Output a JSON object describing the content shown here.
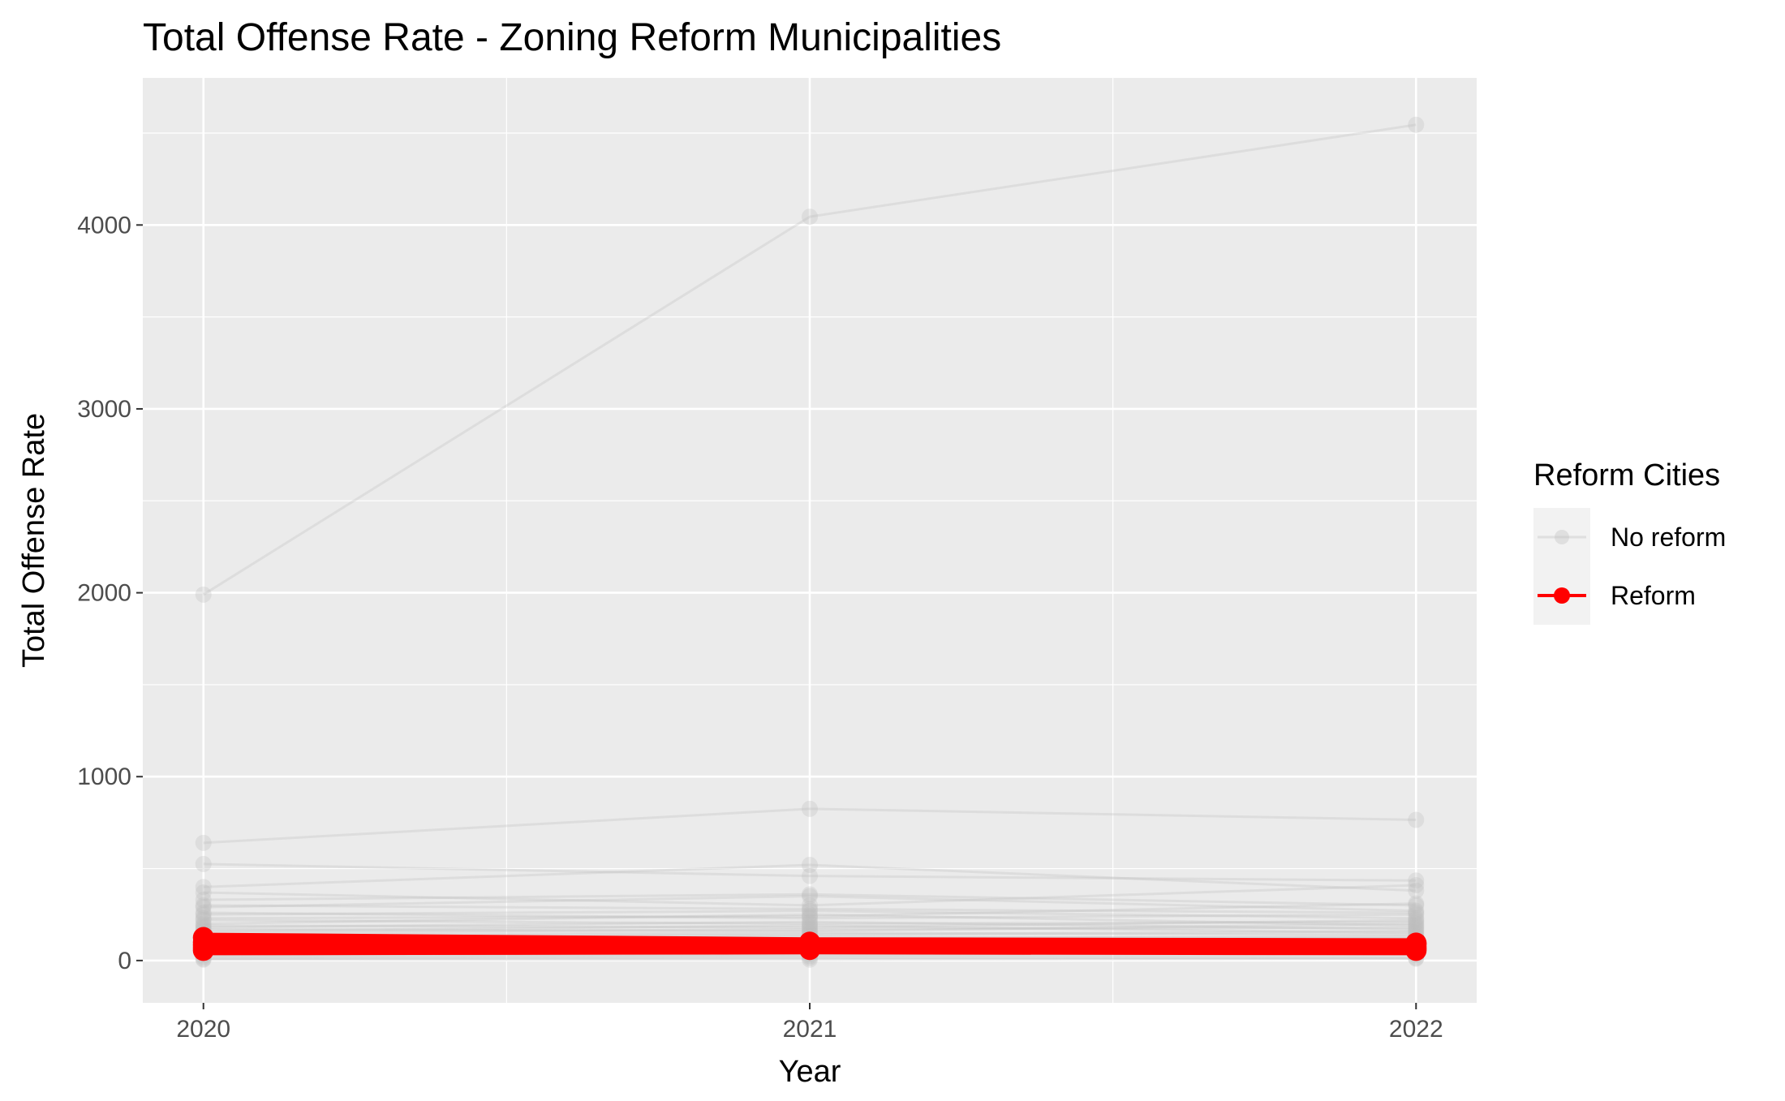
{
  "chart_data": {
    "type": "line",
    "title": "Total Offense Rate - Zoning Reform Municipalities",
    "xlabel": "Year",
    "ylabel": "Total Offense Rate",
    "x": [
      2020,
      2021,
      2022
    ],
    "x_tick_labels": [
      "2020",
      "2021",
      "2022"
    ],
    "ylim": [
      -230,
      4800
    ],
    "y_ticks": [
      0,
      1000,
      2000,
      3000,
      4000
    ],
    "y_tick_labels": [
      "0",
      "1000",
      "2000",
      "3000",
      "4000"
    ],
    "grid": true,
    "legend": {
      "title": "Reform Cities",
      "position": "right",
      "entries": [
        {
          "label": "No reform",
          "color": "#bebebe"
        },
        {
          "label": "Reform",
          "color": "#ff0000"
        }
      ]
    },
    "groups": {
      "no_reform": {
        "color": "#bebebe",
        "series": [
          [
            1990,
            4045,
            4545
          ],
          [
            640,
            825,
            765
          ],
          [
            525,
            460,
            435
          ],
          [
            400,
            520,
            380
          ],
          [
            370,
            300,
            410
          ],
          [
            330,
            360,
            300
          ],
          [
            300,
            280,
            260
          ],
          [
            290,
            350,
            270
          ],
          [
            260,
            230,
            250
          ],
          [
            250,
            270,
            230
          ],
          [
            230,
            240,
            310
          ],
          [
            220,
            200,
            210
          ],
          [
            200,
            250,
            190
          ],
          [
            190,
            180,
            220
          ],
          [
            180,
            210,
            170
          ],
          [
            170,
            160,
            200
          ],
          [
            160,
            190,
            150
          ],
          [
            150,
            170,
            180
          ],
          [
            140,
            150,
            140
          ],
          [
            130,
            140,
            160
          ],
          [
            120,
            130,
            120
          ],
          [
            110,
            120,
            130
          ],
          [
            100,
            110,
            100
          ],
          [
            90,
            100,
            110
          ],
          [
            80,
            90,
            85
          ],
          [
            70,
            75,
            80
          ],
          [
            60,
            65,
            70
          ],
          [
            50,
            55,
            60
          ],
          [
            40,
            45,
            50
          ],
          [
            30,
            35,
            40
          ],
          [
            20,
            25,
            30
          ],
          [
            10,
            15,
            15
          ],
          [
            5,
            5,
            10
          ]
        ]
      },
      "reform": {
        "color": "#ff0000",
        "series": [
          [
            125,
            100,
            95
          ],
          [
            100,
            95,
            90
          ],
          [
            85,
            80,
            75
          ],
          [
            70,
            70,
            65
          ],
          [
            55,
            60,
            55
          ]
        ]
      }
    }
  },
  "colors": {
    "panel_background": "#ebebeb",
    "grid_major": "#ffffff",
    "no_reform": "#bebebe",
    "reform": "#ff0000"
  }
}
